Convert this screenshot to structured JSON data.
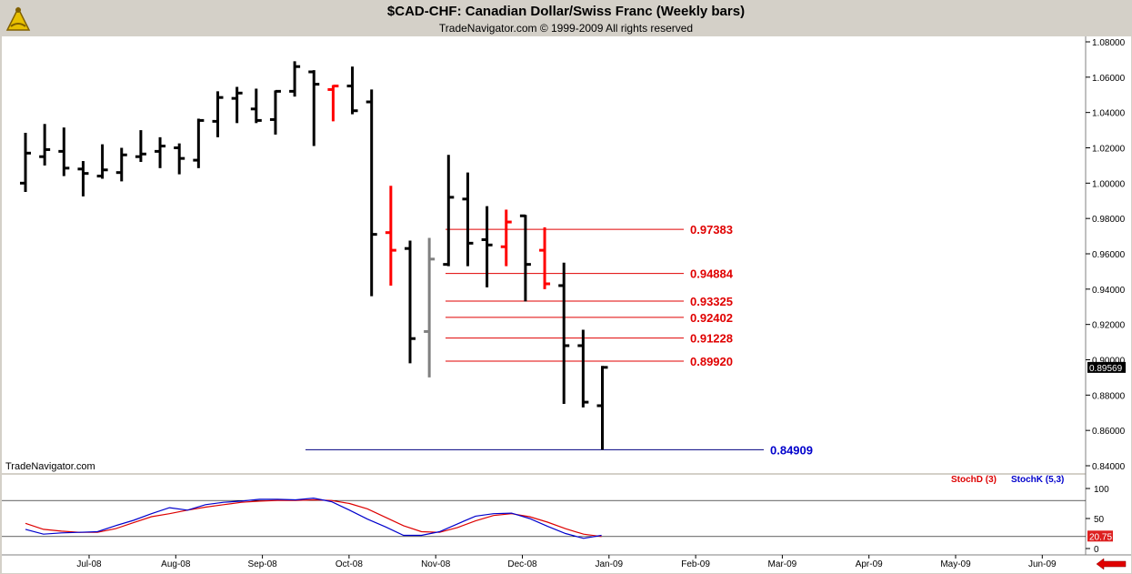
{
  "header": {
    "title": "$CAD-CHF:  Canadian Dollar/Swiss Franc  (Weekly bars)",
    "subtitle": "TradeNavigator.com © 1999-2009 All rights reserved",
    "watermark": "TradeNavigator.com",
    "logo_icon": "sextant-logo-icon"
  },
  "colors": {
    "background": "#ffffff",
    "frame": "#d4d0c8",
    "bar_up": "#000000",
    "bar_highlight": "#ff0000",
    "bar_gray": "#808080",
    "level_line": "#e00000",
    "low_line": "#000080",
    "low_label": "#0000cc",
    "stoch_d": "#dd0000",
    "stoch_k": "#0000cc"
  },
  "chart_data": [
    {
      "type": "ohlc",
      "title": "$CAD-CHF:  Canadian Dollar/Swiss Franc  (Weekly bars)",
      "x_ticks": [
        "Jul-08",
        "Aug-08",
        "Sep-08",
        "Oct-08",
        "Nov-08",
        "Dec-08",
        "Jan-09",
        "Feb-09",
        "Mar-09",
        "Apr-09",
        "May-09",
        "Jun-09"
      ],
      "y_ticks": [
        "1.08000",
        "1.06000",
        "1.04000",
        "1.02000",
        "1.00000",
        "0.98000",
        "0.96000",
        "0.94000",
        "0.92000",
        "0.90000",
        "0.88000",
        "0.86000",
        "0.84000"
      ],
      "ylim": [
        0.84,
        1.08
      ],
      "last_price": "0.89569",
      "bars": [
        {
          "o": 1.0,
          "h": 1.0285,
          "l": 0.995,
          "c": 1.017,
          "color": "black"
        },
        {
          "o": 1.015,
          "h": 1.0335,
          "l": 1.01,
          "c": 1.019,
          "color": "black"
        },
        {
          "o": 1.018,
          "h": 1.0315,
          "l": 1.004,
          "c": 1.0085,
          "color": "black"
        },
        {
          "o": 1.008,
          "h": 1.0125,
          "l": 0.9925,
          "c": 1.0055,
          "color": "black"
        },
        {
          "o": 1.004,
          "h": 1.022,
          "l": 1.0025,
          "c": 1.0075,
          "color": "black"
        },
        {
          "o": 1.006,
          "h": 1.02,
          "l": 1.001,
          "c": 1.016,
          "color": "black"
        },
        {
          "o": 1.015,
          "h": 1.03,
          "l": 1.012,
          "c": 1.0165,
          "color": "black"
        },
        {
          "o": 1.018,
          "h": 1.026,
          "l": 1.0085,
          "c": 1.021,
          "color": "black"
        },
        {
          "o": 1.02,
          "h": 1.0225,
          "l": 1.005,
          "c": 1.014,
          "color": "black"
        },
        {
          "o": 1.013,
          "h": 1.0365,
          "l": 1.0085,
          "c": 1.0355,
          "color": "black"
        },
        {
          "o": 1.035,
          "h": 1.052,
          "l": 1.026,
          "c": 1.0485,
          "color": "black"
        },
        {
          "o": 1.048,
          "h": 1.0545,
          "l": 1.034,
          "c": 1.051,
          "color": "black"
        },
        {
          "o": 1.042,
          "h": 1.0535,
          "l": 1.034,
          "c": 1.0355,
          "color": "black"
        },
        {
          "o": 1.036,
          "h": 1.0525,
          "l": 1.0275,
          "c": 1.052,
          "color": "black"
        },
        {
          "o": 1.052,
          "h": 1.069,
          "l": 1.049,
          "c": 1.066,
          "color": "black"
        },
        {
          "o": 1.063,
          "h": 1.064,
          "l": 1.021,
          "c": 1.056,
          "color": "black"
        },
        {
          "o": 1.053,
          "h": 1.0555,
          "l": 1.035,
          "c": 1.055,
          "color": "red"
        },
        {
          "o": 1.055,
          "h": 1.066,
          "l": 1.039,
          "c": 1.041,
          "color": "black"
        },
        {
          "o": 1.046,
          "h": 1.053,
          "l": 0.936,
          "c": 0.971,
          "color": "black"
        },
        {
          "o": 0.972,
          "h": 0.9985,
          "l": 0.942,
          "c": 0.962,
          "color": "red"
        },
        {
          "o": 0.963,
          "h": 0.9675,
          "l": 0.898,
          "c": 0.912,
          "color": "black"
        },
        {
          "o": 0.916,
          "h": 0.969,
          "l": 0.89,
          "c": 0.957,
          "color": "gray"
        },
        {
          "o": 0.954,
          "h": 1.016,
          "l": 0.953,
          "c": 0.992,
          "color": "black"
        },
        {
          "o": 0.991,
          "h": 1.006,
          "l": 0.953,
          "c": 0.966,
          "color": "black"
        },
        {
          "o": 0.968,
          "h": 0.987,
          "l": 0.941,
          "c": 0.965,
          "color": "black"
        },
        {
          "o": 0.964,
          "h": 0.985,
          "l": 0.953,
          "c": 0.978,
          "color": "red"
        },
        {
          "o": 0.9815,
          "h": 0.982,
          "l": 0.933,
          "c": 0.954,
          "color": "black"
        },
        {
          "o": 0.962,
          "h": 0.975,
          "l": 0.94,
          "c": 0.943,
          "color": "red"
        },
        {
          "o": 0.942,
          "h": 0.955,
          "l": 0.875,
          "c": 0.908,
          "color": "black"
        },
        {
          "o": 0.908,
          "h": 0.917,
          "l": 0.873,
          "c": 0.876,
          "color": "black"
        },
        {
          "o": 0.874,
          "h": 0.8965,
          "l": 0.8491,
          "c": 0.8957,
          "color": "black"
        }
      ],
      "levels": [
        {
          "value": 0.97383,
          "label": "0.97383"
        },
        {
          "value": 0.94884,
          "label": "0.94884"
        },
        {
          "value": 0.93325,
          "label": "0.93325"
        },
        {
          "value": 0.92402,
          "label": "0.92402"
        },
        {
          "value": 0.91228,
          "label": "0.91228"
        },
        {
          "value": 0.8992,
          "label": "0.89920"
        }
      ],
      "low_level": {
        "value": 0.84909,
        "label": "0.84909"
      }
    },
    {
      "type": "line",
      "ylim": [
        0,
        100
      ],
      "y_ticks": [
        "100",
        "50",
        "0"
      ],
      "last_value": "20.75",
      "series": [
        {
          "name": "StochD (3)",
          "values": [
            42,
            32,
            29,
            27,
            27,
            33,
            43,
            53,
            58,
            64,
            69,
            73,
            77,
            79,
            80,
            80,
            81,
            80,
            75,
            66,
            52,
            38,
            28,
            27,
            35,
            46,
            55,
            58,
            53,
            44,
            33,
            24,
            20
          ]
        },
        {
          "name": "StochK (5,3)",
          "values": [
            32,
            24,
            26,
            27,
            28,
            38,
            47,
            58,
            68,
            64,
            73,
            77,
            79,
            82,
            82,
            81,
            84,
            78,
            64,
            49,
            36,
            22,
            22,
            28,
            41,
            54,
            58,
            59,
            50,
            37,
            25,
            17,
            22
          ]
        }
      ]
    }
  ]
}
